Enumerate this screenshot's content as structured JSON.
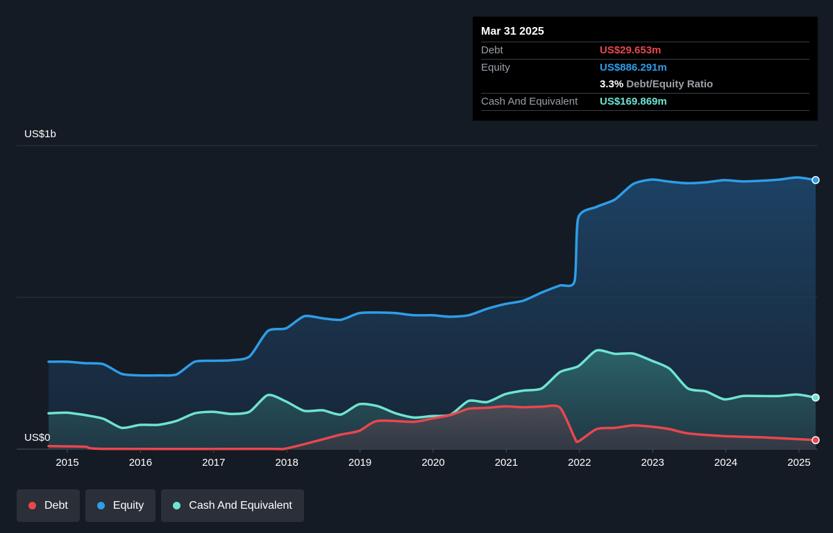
{
  "tooltip": {
    "date": "Mar 31 2025",
    "rows": [
      {
        "label": "Debt",
        "value": "US$29.653m",
        "color": "#e8474e"
      },
      {
        "label": "Equity",
        "value": "US$886.291m",
        "color": "#2d9ee8"
      },
      {
        "label": "",
        "ratio_value": "3.3%",
        "ratio_label": "Debt/Equity Ratio"
      },
      {
        "label": "Cash And Equivalent",
        "value": "US$169.869m",
        "color": "#6fe3d2"
      }
    ]
  },
  "legend": [
    {
      "label": "Debt",
      "color": "#e8474e"
    },
    {
      "label": "Equity",
      "color": "#2d9ee8"
    },
    {
      "label": "Cash And Equivalent",
      "color": "#6fe3d2"
    }
  ],
  "chart_data": {
    "type": "area",
    "y_unit": "US$ millions",
    "ylim": [
      0,
      1000
    ],
    "y_tick_labels": [
      {
        "value": 1000,
        "label": "US$1b"
      },
      {
        "value": 0,
        "label": "US$0"
      }
    ],
    "xlim": [
      2014.75,
      2025.25
    ],
    "x_ticks": [
      "2015",
      "2016",
      "2017",
      "2018",
      "2019",
      "2020",
      "2021",
      "2022",
      "2023",
      "2024",
      "2025"
    ],
    "grid": true,
    "legend_position": "bottom-left",
    "series": [
      {
        "name": "Debt",
        "color": "#e8474e",
        "x": [
          2014.75,
          2015.25,
          2015.5,
          2017.75,
          2018.0,
          2018.5,
          2018.75,
          2019.0,
          2019.25,
          2019.75,
          2020.0,
          2020.25,
          2020.5,
          2020.75,
          2021.0,
          2021.25,
          2021.5,
          2021.75,
          2021.95,
          2022.0,
          2022.25,
          2022.5,
          2022.75,
          2023.0,
          2023.25,
          2023.5,
          2024.0,
          2024.5,
          2025.0,
          2025.25
        ],
        "y": [
          10,
          8,
          1,
          1,
          2,
          32,
          48,
          60,
          93,
          90,
          101,
          112,
          133,
          136,
          141,
          138,
          140,
          137,
          38,
          25,
          66,
          70,
          78,
          74,
          66,
          52,
          43,
          39,
          33,
          29.653
        ]
      },
      {
        "name": "Equity",
        "color": "#2d9ee8",
        "x": [
          2014.75,
          2015.0,
          2015.25,
          2015.5,
          2015.75,
          2016.0,
          2016.25,
          2016.5,
          2016.75,
          2017.0,
          2017.25,
          2017.5,
          2017.75,
          2018.0,
          2018.25,
          2018.5,
          2018.75,
          2019.0,
          2019.25,
          2019.5,
          2019.75,
          2020.0,
          2020.25,
          2020.5,
          2020.75,
          2021.0,
          2021.25,
          2021.5,
          2021.75,
          2021.95,
          2022.0,
          2022.25,
          2022.5,
          2022.75,
          2023.0,
          2023.25,
          2023.5,
          2023.75,
          2024.0,
          2024.25,
          2024.5,
          2024.75,
          2025.0,
          2025.25
        ],
        "y": [
          288,
          288,
          283,
          280,
          248,
          243,
          243,
          246,
          288,
          291,
          293,
          305,
          389,
          398,
          438,
          431,
          426,
          448,
          450,
          448,
          441,
          441,
          436,
          441,
          462,
          478,
          489,
          516,
          539,
          553,
          762,
          798,
          822,
          873,
          888,
          881,
          876,
          879,
          886,
          882,
          884,
          888,
          895,
          886.291
        ]
      },
      {
        "name": "Cash And Equivalent",
        "color": "#6fe3d2",
        "x": [
          2014.75,
          2015.0,
          2015.25,
          2015.5,
          2015.75,
          2016.0,
          2016.25,
          2016.5,
          2016.75,
          2017.0,
          2017.25,
          2017.5,
          2017.75,
          2018.0,
          2018.25,
          2018.5,
          2018.75,
          2019.0,
          2019.25,
          2019.5,
          2019.75,
          2020.0,
          2020.25,
          2020.5,
          2020.75,
          2021.0,
          2021.25,
          2021.5,
          2021.75,
          2022.0,
          2022.25,
          2022.5,
          2022.75,
          2023.0,
          2023.25,
          2023.5,
          2023.75,
          2024.0,
          2024.25,
          2024.5,
          2024.75,
          2025.0,
          2025.25
        ],
        "y": [
          118,
          120,
          112,
          100,
          70,
          80,
          80,
          93,
          118,
          123,
          116,
          123,
          178,
          157,
          126,
          128,
          114,
          148,
          142,
          118,
          104,
          109,
          113,
          159,
          155,
          181,
          193,
          200,
          254,
          273,
          325,
          314,
          315,
          292,
          265,
          200,
          190,
          164,
          175,
          175,
          175,
          180,
          169.869
        ]
      }
    ]
  }
}
